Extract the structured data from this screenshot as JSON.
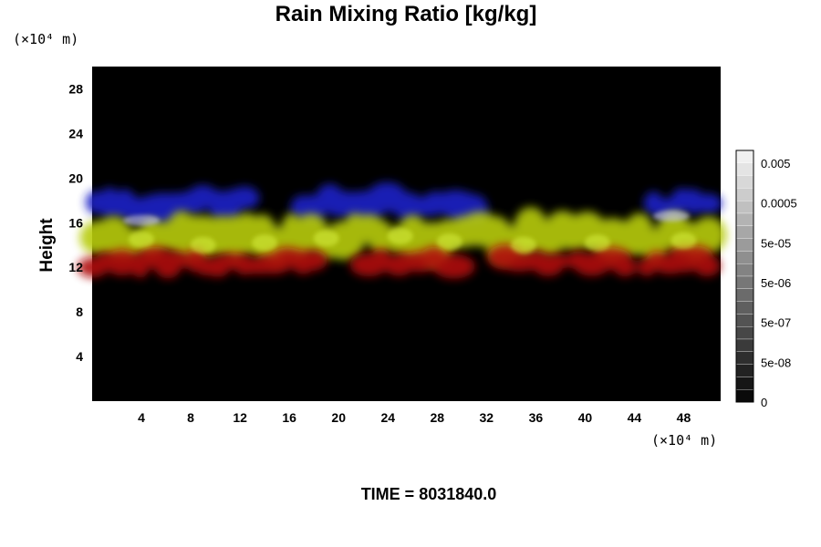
{
  "chart_data": {
    "type": "heatmap",
    "title": "Rain Mixing Ratio [kg/kg]",
    "ylabel": "Height",
    "x_unit_label": "(×10⁴ m)",
    "y_unit_label": "(×10⁴ m)",
    "xlim": [
      0,
      51
    ],
    "ylim": [
      0,
      30
    ],
    "x_ticks": [
      "4",
      "8",
      "12",
      "16",
      "20",
      "24",
      "28",
      "32",
      "36",
      "40",
      "44",
      "48"
    ],
    "y_ticks": [
      "4",
      "8",
      "12",
      "16",
      "20",
      "24",
      "28"
    ],
    "colorbar": {
      "labels": [
        "0.005",
        "0.0005",
        "5e-05",
        "5e-06",
        "5e-07",
        "5e-08",
        "0"
      ],
      "levels": 20
    },
    "layers": [
      {
        "name": "upper",
        "color": "#1a22c8",
        "y_range": [
          16.5,
          19
        ]
      },
      {
        "name": "middle",
        "color": "#b8cc10",
        "y_range": [
          13,
          16.5
        ]
      },
      {
        "name": "lower",
        "color": "#b01010",
        "y_range": [
          11.5,
          13.5
        ]
      }
    ],
    "background_color": "#000000",
    "time_label": "TIME = 8031840.0"
  }
}
